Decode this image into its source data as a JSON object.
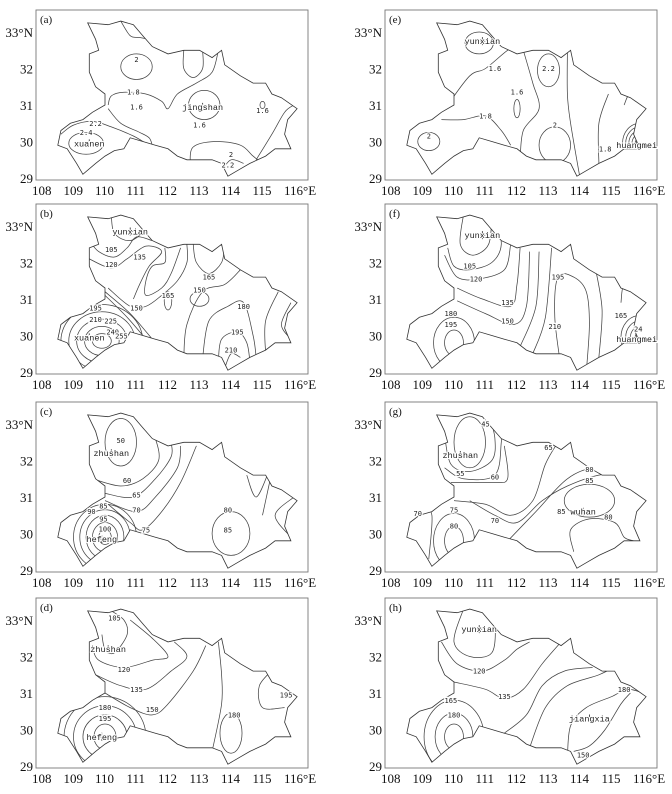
{
  "figure": {
    "lat_ticks": [
      "33°N",
      "32",
      "31",
      "30",
      "29"
    ],
    "lon_ticks": [
      "108",
      "109",
      "110",
      "111",
      "112",
      "113",
      "114",
      "115",
      "116°E"
    ]
  },
  "panels": [
    {
      "id": "a",
      "label": "(a)",
      "stations": [
        {
          "name": "xuanen",
          "lon": 109.5,
          "lat": 29.95
        },
        {
          "name": "jingshan",
          "lon": 113.1,
          "lat": 30.95
        }
      ],
      "contour_labels": [
        {
          "text": "2",
          "lon": 111.0,
          "lat": 32.25
        },
        {
          "text": "1.8",
          "lon": 110.9,
          "lat": 31.35
        },
        {
          "text": "1.6",
          "lon": 111.0,
          "lat": 30.95
        },
        {
          "text": "1.6",
          "lon": 113.0,
          "lat": 30.45
        },
        {
          "text": "1.6",
          "lon": 115.0,
          "lat": 30.85
        },
        {
          "text": "2.2",
          "lon": 109.7,
          "lat": 30.5
        },
        {
          "text": "2.4",
          "lon": 109.4,
          "lat": 30.25
        },
        {
          "text": "2",
          "lon": 114.0,
          "lat": 29.65
        },
        {
          "text": "2.2",
          "lon": 113.9,
          "lat": 29.35
        }
      ]
    },
    {
      "id": "b",
      "label": "(b)",
      "stations": [
        {
          "name": "yunxian",
          "lon": 110.8,
          "lat": 32.85
        },
        {
          "name": "xuanen",
          "lon": 109.5,
          "lat": 29.95
        }
      ],
      "contour_labels": [
        {
          "text": "105",
          "lon": 110.2,
          "lat": 32.35
        },
        {
          "text": "120",
          "lon": 110.2,
          "lat": 31.95
        },
        {
          "text": "135",
          "lon": 111.1,
          "lat": 32.15
        },
        {
          "text": "165",
          "lon": 112.0,
          "lat": 31.1
        },
        {
          "text": "150",
          "lon": 113.0,
          "lat": 31.25
        },
        {
          "text": "165",
          "lon": 113.3,
          "lat": 31.6
        },
        {
          "text": "150",
          "lon": 111.0,
          "lat": 30.75
        },
        {
          "text": "180",
          "lon": 114.4,
          "lat": 30.8
        },
        {
          "text": "195",
          "lon": 114.2,
          "lat": 30.1
        },
        {
          "text": "210",
          "lon": 114.0,
          "lat": 29.6
        },
        {
          "text": "195",
          "lon": 109.7,
          "lat": 30.75
        },
        {
          "text": "210",
          "lon": 109.7,
          "lat": 30.6
        },
        {
          "text": "225",
          "lon": 109.8,
          "lat": 30.4
        },
        {
          "text": "240",
          "lon": 109.8,
          "lat": 30.2
        },
        {
          "text": "255",
          "lon": 109.95,
          "lat": 29.98
        }
      ]
    },
    {
      "id": "c",
      "label": "(c)",
      "stations": [
        {
          "name": "zhushan",
          "lon": 110.2,
          "lat": 32.2
        },
        {
          "name": "hefeng",
          "lon": 109.9,
          "lat": 29.85
        }
      ],
      "contour_labels": [
        {
          "text": "50",
          "lon": 110.5,
          "lat": 32.55
        },
        {
          "text": "60",
          "lon": 110.7,
          "lat": 31.45
        },
        {
          "text": "65",
          "lon": 111.0,
          "lat": 31.05
        },
        {
          "text": "70",
          "lon": 111.0,
          "lat": 30.65
        },
        {
          "text": "75",
          "lon": 111.3,
          "lat": 30.1
        },
        {
          "text": "80",
          "lon": 113.9,
          "lat": 30.65
        },
        {
          "text": "85",
          "lon": 113.9,
          "lat": 30.1
        },
        {
          "text": "85",
          "lon": 109.95,
          "lat": 30.75
        },
        {
          "text": "90",
          "lon": 109.95,
          "lat": 30.6
        },
        {
          "text": "95",
          "lon": 109.95,
          "lat": 30.4
        },
        {
          "text": "100",
          "lon": 110.0,
          "lat": 30.2
        }
      ]
    },
    {
      "id": "d",
      "label": "(d)",
      "stations": [
        {
          "name": "zhushan",
          "lon": 110.1,
          "lat": 32.2
        },
        {
          "name": "hefeng",
          "lon": 109.9,
          "lat": 29.8
        }
      ],
      "contour_labels": [
        {
          "text": "105",
          "lon": 110.3,
          "lat": 33.05
        },
        {
          "text": "120",
          "lon": 110.6,
          "lat": 31.65
        },
        {
          "text": "135",
          "lon": 111.0,
          "lat": 31.1
        },
        {
          "text": "150",
          "lon": 111.5,
          "lat": 30.55
        },
        {
          "text": "195",
          "lon": 115.75,
          "lat": 30.95
        },
        {
          "text": "180",
          "lon": 114.1,
          "lat": 30.4
        },
        {
          "text": "180",
          "lon": 110.0,
          "lat": 30.6
        },
        {
          "text": "195",
          "lon": 110.0,
          "lat": 30.3
        }
      ]
    },
    {
      "id": "e",
      "label": "(e)",
      "stations": [
        {
          "name": "yunxian",
          "lon": 110.9,
          "lat": 32.75
        },
        {
          "name": "huangmei",
          "lon": 115.8,
          "lat": 29.9
        }
      ],
      "contour_labels": [
        {
          "text": "1.6",
          "lon": 111.3,
          "lat": 32.0
        },
        {
          "text": "2.2",
          "lon": 113.0,
          "lat": 32.0
        },
        {
          "text": "1.6",
          "lon": 112.0,
          "lat": 31.35
        },
        {
          "text": "1.8",
          "lon": 111.0,
          "lat": 30.7
        },
        {
          "text": "2",
          "lon": 113.2,
          "lat": 30.45
        },
        {
          "text": "2",
          "lon": 109.2,
          "lat": 30.15
        },
        {
          "text": "1.8",
          "lon": 114.8,
          "lat": 29.8
        }
      ]
    },
    {
      "id": "f",
      "label": "(f)",
      "stations": [
        {
          "name": "yunxian",
          "lon": 110.9,
          "lat": 32.75
        },
        {
          "name": "huangmei",
          "lon": 115.8,
          "lat": 29.9
        }
      ],
      "contour_labels": [
        {
          "text": "105",
          "lon": 110.5,
          "lat": 31.9
        },
        {
          "text": "120",
          "lon": 110.7,
          "lat": 31.55
        },
        {
          "text": "135",
          "lon": 111.7,
          "lat": 30.9
        },
        {
          "text": "150",
          "lon": 111.7,
          "lat": 30.4
        },
        {
          "text": "195",
          "lon": 113.3,
          "lat": 31.6
        },
        {
          "text": "210",
          "lon": 113.2,
          "lat": 30.25
        },
        {
          "text": "165",
          "lon": 115.3,
          "lat": 30.55
        },
        {
          "text": "180",
          "lon": 109.9,
          "lat": 30.6
        },
        {
          "text": "195",
          "lon": 109.9,
          "lat": 30.3
        },
        {
          "text": "24",
          "lon": 115.85,
          "lat": 30.1
        }
      ]
    },
    {
      "id": "g",
      "label": "(g)",
      "stations": [
        {
          "name": "zhushan",
          "lon": 110.2,
          "lat": 32.15
        },
        {
          "name": "wuhan",
          "lon": 114.1,
          "lat": 30.6
        }
      ],
      "contour_labels": [
        {
          "text": "45",
          "lon": 111.0,
          "lat": 33.0
        },
        {
          "text": "65",
          "lon": 113.0,
          "lat": 32.35
        },
        {
          "text": "55",
          "lon": 110.2,
          "lat": 31.65
        },
        {
          "text": "60",
          "lon": 111.3,
          "lat": 31.55
        },
        {
          "text": "80",
          "lon": 114.3,
          "lat": 31.75
        },
        {
          "text": "85",
          "lon": 114.3,
          "lat": 31.45
        },
        {
          "text": "85",
          "lon": 113.6,
          "lat": 30.6
        },
        {
          "text": "80",
          "lon": 114.9,
          "lat": 30.45
        },
        {
          "text": "70",
          "lon": 108.85,
          "lat": 30.55
        },
        {
          "text": "75",
          "lon": 110.0,
          "lat": 30.65
        },
        {
          "text": "80",
          "lon": 110.0,
          "lat": 30.2
        },
        {
          "text": "70",
          "lon": 111.3,
          "lat": 30.35
        }
      ]
    },
    {
      "id": "h",
      "label": "(h)",
      "stations": [
        {
          "name": "yunxian",
          "lon": 110.8,
          "lat": 32.75
        },
        {
          "name": "jiangxia",
          "lon": 114.3,
          "lat": 30.3
        }
      ],
      "contour_labels": [
        {
          "text": "120",
          "lon": 110.8,
          "lat": 31.6
        },
        {
          "text": "135",
          "lon": 111.6,
          "lat": 30.9
        },
        {
          "text": "180",
          "lon": 115.4,
          "lat": 31.1
        },
        {
          "text": "150",
          "lon": 114.1,
          "lat": 29.3
        },
        {
          "text": "165",
          "lon": 109.9,
          "lat": 30.8
        },
        {
          "text": "180",
          "lon": 110.0,
          "lat": 30.4
        }
      ]
    }
  ]
}
